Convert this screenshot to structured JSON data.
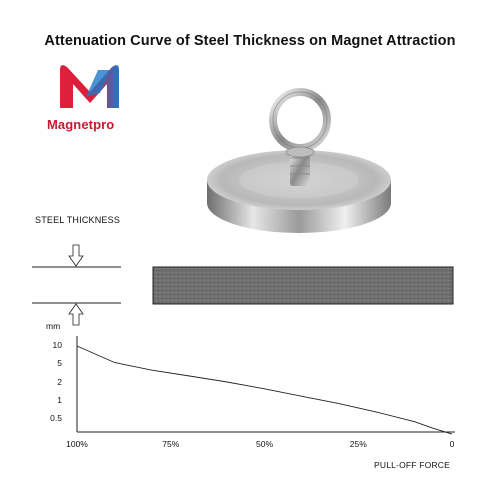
{
  "title": "Attenuation Curve of Steel Thickness on Magnet Attraction",
  "brand": {
    "name": "Magnetpro",
    "logo_letter": "M",
    "colors": {
      "red": "#d81e3a",
      "blue": "#1e78c8"
    }
  },
  "product_image": "fishing-magnet-with-eyebolt",
  "steel_diagram": {
    "label": "STEEL THICKNESS",
    "plate_color": "#707070"
  },
  "chart_data": {
    "type": "line",
    "ylabel": "mm",
    "y_ticks": [
      "10",
      "5",
      "2",
      "1",
      "0.5"
    ],
    "x_ticks": [
      "100%",
      "75%",
      "50%",
      "25%",
      "0"
    ],
    "xlabel": "PULL-OFF FORCE",
    "series": [
      {
        "x": [
          100,
          90,
          80,
          70,
          60,
          50,
          40,
          30,
          20,
          10,
          5,
          0
        ],
        "y": [
          10,
          5.3,
          3.7,
          2.8,
          2.1,
          1.6,
          1.2,
          0.9,
          0.65,
          0.45,
          0.35,
          0.28
        ]
      }
    ],
    "xlim": [
      100,
      0
    ],
    "yscale": "category-log",
    "grid": false
  }
}
